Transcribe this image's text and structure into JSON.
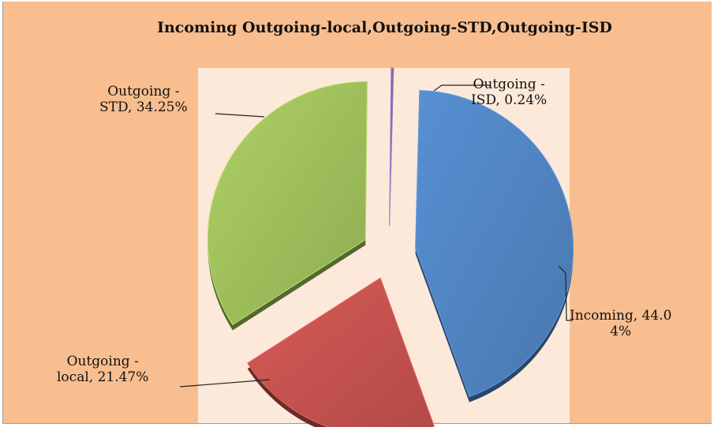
{
  "chart_data": {
    "type": "pie",
    "title": "Incoming Outgoing-local,Outgoing-STD,Outgoing-ISD",
    "style": "exploded-3d",
    "slices": [
      {
        "name": "Incoming",
        "value": 44.04,
        "label_lines": [
          "Incoming, 44.0",
          "4%"
        ],
        "color": "#4f81bd"
      },
      {
        "name": "Outgoing - local",
        "value": 21.47,
        "label_lines": [
          "Outgoing -",
          "local, 21.47%"
        ],
        "color": "#c0504d"
      },
      {
        "name": "Outgoing - STD",
        "value": 34.25,
        "label_lines": [
          "Outgoing -",
          "STD, 34.25%"
        ],
        "color": "#9bbb59"
      },
      {
        "name": "Outgoing - ISD",
        "value": 0.24,
        "label_lines": [
          "Outgoing -",
          "ISD, 0.24%"
        ],
        "color": "#8064a2"
      }
    ]
  }
}
